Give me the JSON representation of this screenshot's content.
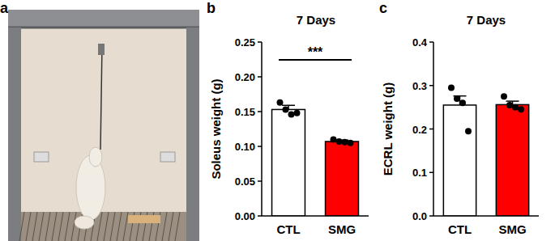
{
  "photo_panel": {
    "label": "a"
  },
  "chart_data": [
    {
      "type": "bar",
      "panel_label": "b",
      "title": "7 Days",
      "y_label": "Soleus weight (g)",
      "categories": [
        "CTL",
        "SMG"
      ],
      "values": [
        0.153,
        0.107
      ],
      "errors": [
        0.006,
        0.002
      ],
      "points": [
        [
          0.163,
          0.153,
          0.146,
          0.148
        ],
        [
          0.11,
          0.107,
          0.106,
          0.105
        ]
      ],
      "colors": [
        "#ffffff",
        "#ff0000"
      ],
      "annotations": [
        "***"
      ],
      "ylim": [
        0,
        0.25
      ],
      "yticks": [
        {
          "value": 0,
          "label": "0.00"
        },
        0.05,
        {
          "value": 0.1,
          "label": "0.10"
        },
        0.15,
        {
          "value": 0.2,
          "label": "0.20"
        },
        0.25
      ]
    },
    {
      "type": "bar",
      "panel_label": "c",
      "title": "7 Days",
      "y_label": "ECRL weight (g)",
      "categories": [
        "CTL",
        "SMG"
      ],
      "values": [
        0.255,
        0.256
      ],
      "errors": [
        0.021,
        0.008
      ],
      "points": [
        [
          0.295,
          0.27,
          0.26,
          0.195
        ],
        [
          0.275,
          0.255,
          0.25,
          0.245
        ]
      ],
      "colors": [
        "#ffffff",
        "#ff0000"
      ],
      "ylim": [
        0,
        0.4
      ],
      "yticks": [
        {
          "value": 0,
          "label": "0.0"
        },
        0.1,
        0.2,
        0.3,
        0.4
      ]
    }
  ]
}
